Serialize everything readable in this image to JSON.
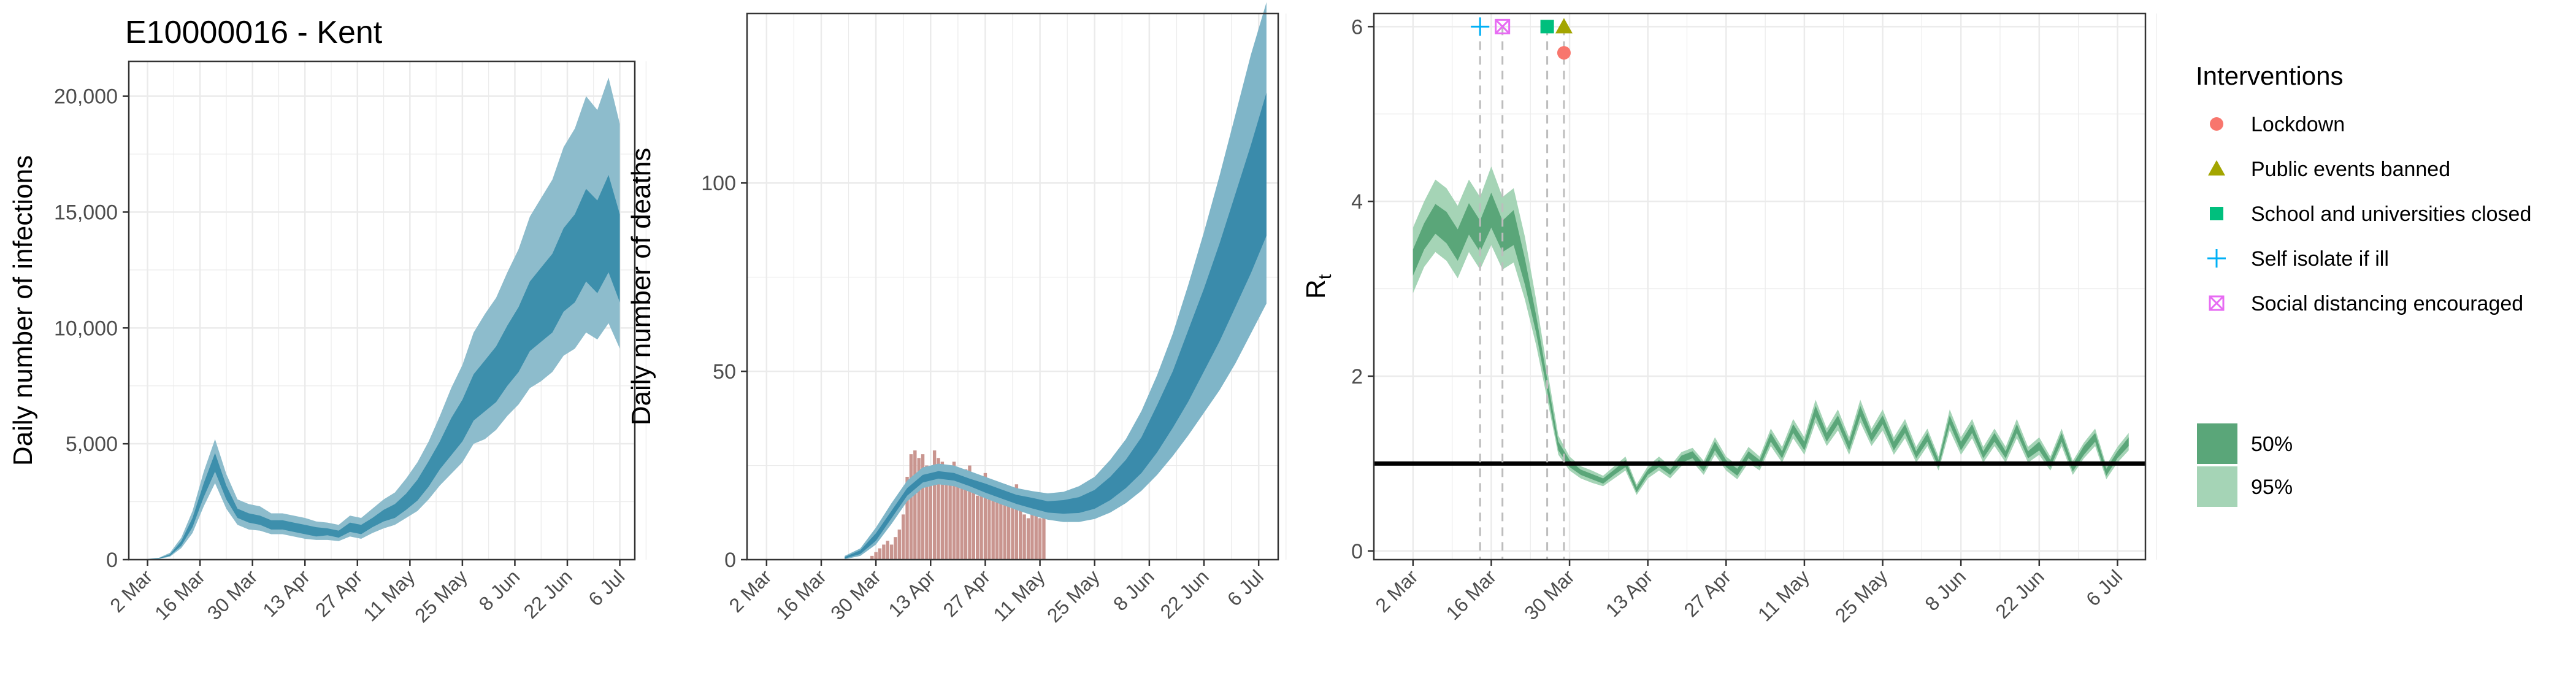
{
  "colors": {
    "infection_95": "#8dbccc",
    "infection_50": "#3d8fac",
    "deaths_bar": "#c9958f",
    "deaths_95": "#7fb5c8",
    "deaths_50": "#3a8bab",
    "rt_50": "#5aa679",
    "rt_95": "#a5d4b6",
    "lockdown": "#f8766d",
    "public_events": "#a3a500",
    "schools": "#00bf7d",
    "self_isolate": "#00b0f6",
    "social_distancing": "#e76bf3",
    "threshold": "#000000",
    "grid": "#ebebeb",
    "axis_text": "#4d4d4d"
  },
  "x_ticks": [
    "2 Mar",
    "16 Mar",
    "30 Mar",
    "13 Apr",
    "27 Apr",
    "11 May",
    "25 May",
    "8 Jun",
    "22 Jun",
    "6 Jul"
  ],
  "chart_data": [
    {
      "id": "infections",
      "type": "area",
      "title": "E10000016 - Kent",
      "xlabel": "",
      "ylabel": "Daily number of infections",
      "x_unit": "days",
      "xlim": [
        -5,
        130
      ],
      "ylim": [
        0,
        21500
      ],
      "y_ticks": [
        0,
        5000,
        10000,
        15000,
        20000
      ],
      "y_tick_labels": [
        "0",
        "5,000",
        "10,000",
        "15,000",
        "20,000"
      ],
      "grid": true,
      "series": [
        {
          "x": [
            0,
            3,
            6,
            9,
            12,
            15,
            18,
            21,
            24,
            27,
            30,
            33,
            36,
            39,
            42,
            45,
            48,
            51,
            54,
            57,
            60,
            63,
            66,
            69,
            72,
            75,
            78,
            81,
            84,
            87,
            90,
            93,
            96,
            99,
            102,
            105,
            108,
            111,
            114,
            117,
            120,
            123,
            126
          ],
          "median": [
            20,
            50,
            200,
            700,
            1600,
            3000,
            4200,
            2900,
            2000,
            1800,
            1700,
            1500,
            1500,
            1400,
            1300,
            1200,
            1200,
            1100,
            1400,
            1300,
            1600,
            1900,
            2100,
            2500,
            3000,
            3700,
            4500,
            5300,
            6000,
            7000,
            7500,
            8000,
            8800,
            9500,
            10500,
            11000,
            11500,
            12500,
            13000,
            14000,
            13500,
            14500,
            13000
          ],
          "lo50": [
            15,
            40,
            170,
            600,
            1400,
            2700,
            3800,
            2600,
            1800,
            1600,
            1500,
            1300,
            1300,
            1200,
            1100,
            1000,
            1050,
            950,
            1200,
            1100,
            1400,
            1650,
            1800,
            2150,
            2550,
            3150,
            3900,
            4500,
            5100,
            6000,
            6400,
            6800,
            7500,
            8100,
            9000,
            9400,
            9800,
            10700,
            11100,
            12000,
            11500,
            12400,
            11100
          ],
          "hi50": [
            25,
            60,
            230,
            800,
            1800,
            3300,
            4600,
            3200,
            2200,
            2000,
            1900,
            1700,
            1700,
            1600,
            1500,
            1400,
            1350,
            1250,
            1600,
            1500,
            1800,
            2150,
            2400,
            2850,
            3450,
            4250,
            5100,
            6100,
            6900,
            8000,
            8600,
            9200,
            10100,
            10900,
            12000,
            12600,
            13200,
            14300,
            14900,
            16000,
            15500,
            16600,
            14900
          ],
          "lo95": [
            10,
            30,
            130,
            500,
            1150,
            2300,
            3300,
            2200,
            1500,
            1300,
            1250,
            1100,
            1100,
            1000,
            900,
            850,
            850,
            800,
            1000,
            900,
            1150,
            1350,
            1500,
            1800,
            2100,
            2600,
            3200,
            3700,
            4200,
            5000,
            5200,
            5600,
            6200,
            6700,
            7400,
            7700,
            8100,
            8800,
            9100,
            9800,
            9500,
            10200,
            9100
          ],
          "hi95": [
            35,
            80,
            300,
            950,
            2100,
            3800,
            5200,
            3700,
            2600,
            2400,
            2300,
            2000,
            2000,
            1900,
            1800,
            1650,
            1600,
            1500,
            1900,
            1800,
            2200,
            2600,
            2900,
            3500,
            4200,
            5100,
            6200,
            7400,
            8400,
            9800,
            10600,
            11300,
            12400,
            13400,
            14800,
            15600,
            16400,
            17800,
            18600,
            20000,
            19400,
            20800,
            18800
          ]
        }
      ]
    },
    {
      "id": "deaths",
      "type": "bar",
      "title": "",
      "xlabel": "",
      "ylabel": "Daily number of deaths",
      "x_unit": "days",
      "xlim": [
        -5,
        131
      ],
      "ylim": [
        0,
        145
      ],
      "y_ticks": [
        0,
        50,
        100
      ],
      "y_tick_labels": [
        "0",
        "50",
        "100"
      ],
      "grid": true,
      "bars": {
        "x": [
          27,
          28,
          29,
          30,
          31,
          32,
          33,
          34,
          35,
          36,
          37,
          38,
          39,
          40,
          41,
          42,
          43,
          44,
          45,
          46,
          47,
          48,
          49,
          50,
          51,
          52,
          53,
          54,
          55,
          56,
          57,
          58,
          59,
          60,
          61,
          62,
          63,
          64,
          65,
          66,
          67,
          68,
          69,
          70,
          71
        ],
        "values": [
          1,
          2,
          3,
          4,
          5,
          4,
          6,
          8,
          12,
          22,
          28,
          29,
          27,
          28,
          25,
          24,
          29,
          27,
          26,
          22,
          25,
          26,
          21,
          19,
          24,
          25,
          21,
          17,
          22,
          23,
          18,
          21,
          16,
          18,
          20,
          15,
          17,
          20,
          14,
          12,
          11,
          13,
          12,
          11,
          12
        ]
      },
      "series": [
        {
          "x": [
            20,
            24,
            28,
            32,
            36,
            40,
            44,
            48,
            52,
            56,
            60,
            64,
            68,
            72,
            76,
            80,
            84,
            88,
            92,
            96,
            100,
            104,
            108,
            112,
            116,
            120,
            124,
            128
          ],
          "median": [
            0.5,
            2,
            6,
            12,
            18,
            21.5,
            22.5,
            22,
            20.5,
            19,
            17.5,
            16,
            15,
            14,
            14,
            14.5,
            16,
            19,
            23,
            28,
            35,
            43,
            52,
            62,
            72,
            83,
            94,
            106
          ],
          "lo50": [
            0.3,
            1.5,
            5,
            11,
            17,
            20.5,
            21.5,
            21,
            19.5,
            17.8,
            16.3,
            14.8,
            13.6,
            12.5,
            12.2,
            12.4,
            13.5,
            15.8,
            19,
            23,
            28.5,
            35,
            42,
            50,
            58,
            67,
            76,
            86
          ],
          "hi50": [
            0.7,
            2.5,
            7,
            13,
            19,
            22.5,
            23.5,
            23,
            21.5,
            20.2,
            18.7,
            17.2,
            16.4,
            15.5,
            15.8,
            16.6,
            18.5,
            22,
            26.5,
            32.5,
            41,
            50,
            61,
            72,
            84,
            97,
            110,
            124
          ],
          "lo95": [
            0.1,
            1,
            4,
            9.5,
            15.5,
            19,
            20,
            19.5,
            18,
            16.3,
            14.7,
            13.2,
            11.8,
            10.6,
            10,
            10,
            10.8,
            12.5,
            15,
            18.3,
            22.5,
            27.5,
            33,
            39,
            45,
            52,
            60,
            68
          ],
          "hi95": [
            1,
            3,
            8.5,
            15,
            21,
            24.5,
            25.5,
            25,
            23.5,
            22,
            20.5,
            19,
            18.2,
            17.6,
            18,
            19.5,
            22,
            26.5,
            32,
            39.5,
            49,
            60,
            73,
            87,
            102,
            118,
            134,
            148
          ]
        }
      ]
    },
    {
      "id": "rt",
      "type": "line",
      "title": "",
      "xlabel": "",
      "ylabel": "R",
      "ylabel_subscript": "t",
      "x_unit": "days",
      "xlim": [
        -7,
        131
      ],
      "ylim": [
        -0.1,
        6.15
      ],
      "y_ticks": [
        0,
        2,
        4,
        6
      ],
      "y_tick_labels": [
        "0",
        "2",
        "4",
        "6"
      ],
      "grid": true,
      "threshold": 1,
      "series": [
        {
          "x": [
            0,
            2,
            4,
            6,
            8,
            10,
            12,
            14,
            16,
            18,
            20,
            22,
            24,
            26,
            28,
            30,
            32,
            34,
            36,
            38,
            40,
            42,
            44,
            46,
            48,
            50,
            52,
            54,
            56,
            58,
            60,
            62,
            64,
            66,
            68,
            70,
            72,
            74,
            76,
            78,
            80,
            82,
            84,
            86,
            88,
            90,
            92,
            94,
            96,
            98,
            100,
            102,
            104,
            106,
            108,
            110,
            112,
            114,
            116,
            118,
            120,
            122,
            124,
            126,
            128
          ],
          "median": [
            3.3,
            3.6,
            3.8,
            3.7,
            3.5,
            3.8,
            3.6,
            3.9,
            3.6,
            3.7,
            3.2,
            2.6,
            1.9,
            1.2,
            1.0,
            0.9,
            0.85,
            0.8,
            0.9,
            1.0,
            0.7,
            0.9,
            1.0,
            0.9,
            1.05,
            1.1,
            0.95,
            1.2,
            1.0,
            0.9,
            1.1,
            1.0,
            1.3,
            1.1,
            1.4,
            1.2,
            1.6,
            1.3,
            1.5,
            1.2,
            1.6,
            1.3,
            1.5,
            1.2,
            1.4,
            1.1,
            1.3,
            1.0,
            1.5,
            1.2,
            1.4,
            1.1,
            1.3,
            1.1,
            1.4,
            1.1,
            1.2,
            1.0,
            1.3,
            0.95,
            1.15,
            1.3,
            0.9,
            1.1,
            1.25
          ],
          "lo50": [
            3.15,
            3.45,
            3.63,
            3.52,
            3.32,
            3.62,
            3.42,
            3.7,
            3.42,
            3.5,
            3.05,
            2.5,
            1.83,
            1.15,
            0.96,
            0.87,
            0.82,
            0.77,
            0.87,
            0.96,
            0.67,
            0.87,
            0.96,
            0.87,
            1.01,
            1.06,
            0.91,
            1.15,
            0.96,
            0.86,
            1.06,
            0.96,
            1.25,
            1.06,
            1.35,
            1.15,
            1.54,
            1.25,
            1.45,
            1.15,
            1.54,
            1.25,
            1.45,
            1.15,
            1.35,
            1.06,
            1.25,
            0.96,
            1.45,
            1.15,
            1.35,
            1.06,
            1.25,
            1.06,
            1.35,
            1.06,
            1.15,
            0.96,
            1.25,
            0.91,
            1.1,
            1.25,
            0.86,
            1.06,
            1.2
          ],
          "hi50": [
            3.45,
            3.75,
            3.97,
            3.88,
            3.68,
            3.98,
            3.78,
            4.1,
            3.78,
            3.9,
            3.35,
            2.7,
            1.97,
            1.25,
            1.04,
            0.93,
            0.88,
            0.83,
            0.93,
            1.04,
            0.73,
            0.93,
            1.04,
            0.93,
            1.09,
            1.14,
            0.99,
            1.25,
            1.04,
            0.94,
            1.14,
            1.04,
            1.35,
            1.14,
            1.45,
            1.25,
            1.66,
            1.35,
            1.55,
            1.25,
            1.66,
            1.35,
            1.55,
            1.25,
            1.45,
            1.14,
            1.35,
            1.04,
            1.55,
            1.25,
            1.45,
            1.14,
            1.35,
            1.14,
            1.45,
            1.14,
            1.25,
            1.04,
            1.35,
            0.99,
            1.2,
            1.35,
            0.94,
            1.14,
            1.3
          ],
          "lo95": [
            2.95,
            3.25,
            3.42,
            3.32,
            3.12,
            3.42,
            3.22,
            3.5,
            3.22,
            3.3,
            2.88,
            2.36,
            1.74,
            1.1,
            0.92,
            0.83,
            0.78,
            0.74,
            0.83,
            0.92,
            0.64,
            0.83,
            0.92,
            0.83,
            0.97,
            1.02,
            0.87,
            1.1,
            0.92,
            0.82,
            1.01,
            0.92,
            1.2,
            1.01,
            1.29,
            1.1,
            1.47,
            1.2,
            1.38,
            1.1,
            1.47,
            1.2,
            1.38,
            1.1,
            1.29,
            1.01,
            1.2,
            0.92,
            1.38,
            1.1,
            1.29,
            1.01,
            1.2,
            1.01,
            1.29,
            1.01,
            1.1,
            0.92,
            1.2,
            0.87,
            1.06,
            1.2,
            0.82,
            1.01,
            1.15
          ],
          "hi95": [
            3.7,
            4.0,
            4.25,
            4.15,
            3.95,
            4.25,
            4.05,
            4.4,
            4.05,
            4.15,
            3.6,
            2.88,
            2.08,
            1.32,
            1.08,
            0.97,
            0.92,
            0.86,
            0.97,
            1.08,
            0.76,
            0.97,
            1.08,
            0.97,
            1.13,
            1.18,
            1.03,
            1.3,
            1.08,
            0.98,
            1.19,
            1.08,
            1.4,
            1.19,
            1.51,
            1.3,
            1.73,
            1.4,
            1.62,
            1.3,
            1.73,
            1.4,
            1.62,
            1.3,
            1.51,
            1.19,
            1.4,
            1.08,
            1.62,
            1.3,
            1.51,
            1.19,
            1.4,
            1.19,
            1.51,
            1.19,
            1.3,
            1.08,
            1.4,
            1.03,
            1.24,
            1.4,
            0.98,
            1.19,
            1.35
          ]
        }
      ],
      "interventions": [
        {
          "key": "self_isolate",
          "x": 12,
          "y": 6,
          "shape": "plus"
        },
        {
          "key": "social_distancing",
          "x": 16,
          "y": 6,
          "shape": "boxcross"
        },
        {
          "key": "schools",
          "x": 24,
          "y": 6,
          "shape": "square"
        },
        {
          "key": "public_events",
          "x": 27,
          "y": 6,
          "shape": "triangle"
        },
        {
          "key": "lockdown",
          "x": 27,
          "y": 5.7,
          "shape": "circle"
        }
      ],
      "vlines": [
        12,
        16,
        24,
        27
      ]
    }
  ],
  "legend": {
    "interventions_title": "Interventions",
    "interventions": [
      {
        "key": "lockdown",
        "label": "Lockdown",
        "shape": "circle"
      },
      {
        "key": "public_events",
        "label": "Public events banned",
        "shape": "triangle"
      },
      {
        "key": "schools",
        "label": "School and universities closed",
        "shape": "square"
      },
      {
        "key": "self_isolate",
        "label": "Self isolate if ill",
        "shape": "plus"
      },
      {
        "key": "social_distancing",
        "label": "Social distancing encouraged",
        "shape": "boxcross"
      }
    ],
    "ci": [
      {
        "key": "rt_50",
        "label": "50%"
      },
      {
        "key": "rt_95",
        "label": "95%"
      }
    ]
  }
}
